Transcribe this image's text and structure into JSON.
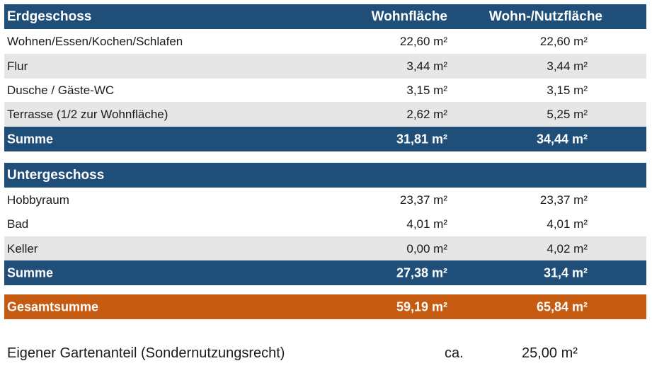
{
  "colors": {
    "header": "#1f4e79",
    "total": "#c55a11",
    "stripe": "#e7e6e6"
  },
  "erdgeschoss": {
    "title": "Erdgeschoss",
    "col1": "Wohnfläche",
    "col2": "Wohn-/Nutzfläche",
    "rows": [
      {
        "label": "Wohnen/Essen/Kochen/Schlafen",
        "wohn": "22,60 m²",
        "nutz": "22,60 m²"
      },
      {
        "label": "Flur",
        "wohn": "3,44 m²",
        "nutz": "3,44 m²"
      },
      {
        "label": "Dusche / Gäste-WC",
        "wohn": "3,15 m²",
        "nutz": "3,15 m²"
      },
      {
        "label": "Terrasse (1/2 zur Wohnfläche)",
        "wohn": "2,62 m²",
        "nutz": "5,25 m²"
      }
    ],
    "sum": {
      "label": "Summe",
      "wohn": "31,81 m²",
      "nutz": "34,44 m²"
    }
  },
  "untergeschoss": {
    "title": "Untergeschoss",
    "rows": [
      {
        "label": "Hobbyraum",
        "wohn": "23,37 m²",
        "nutz": "23,37 m²"
      },
      {
        "label": "Bad",
        "wohn": "4,01 m²",
        "nutz": "4,01 m²"
      },
      {
        "label": "Keller",
        "wohn": "0,00 m²",
        "nutz": "4,02 m²"
      }
    ],
    "sum": {
      "label": "Summe",
      "wohn": "27,38 m²",
      "nutz": "31,4 m²"
    }
  },
  "total": {
    "label": "Gesamtsumme",
    "wohn": "59,19 m²",
    "nutz": "65,84 m²"
  },
  "garden": {
    "label": "Eigener Gartenanteil (Sondernutzungsrecht)",
    "approx": "ca.",
    "value": "25,00 m²"
  }
}
